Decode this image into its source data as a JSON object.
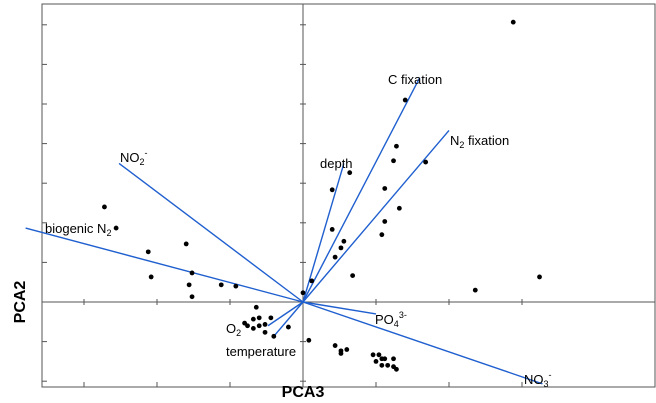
{
  "chart_data": {
    "type": "scatter",
    "subtype": "pca-biplot",
    "xlabel": "PCA3",
    "ylabel": "PCA2",
    "xlim": [
      -1.0,
      1.0
    ],
    "ylim": [
      -0.8,
      2.3
    ],
    "grid": false,
    "colors": {
      "points": "#000000",
      "vectors": "#1f5fcf",
      "frame": "#555555"
    },
    "vectors": [
      {
        "id": "c-fixation",
        "end": [
          0.4,
          1.7
        ],
        "label": "C fixation",
        "label_sub": ""
      },
      {
        "id": "n2-fixation",
        "end": [
          0.5,
          1.3
        ],
        "label": "N",
        "label_sub": "2",
        "label_after": " fixation"
      },
      {
        "id": "depth",
        "end": [
          0.14,
          1.05
        ],
        "label": "depth",
        "label_sub": ""
      },
      {
        "id": "no2",
        "end": [
          -0.63,
          1.05
        ],
        "label": "NO",
        "label_sub": "2",
        "label_sup": "-"
      },
      {
        "id": "biogenic-n2",
        "end": [
          -0.95,
          0.56
        ],
        "label": "biogenic N",
        "label_sub": "2"
      },
      {
        "id": "po4",
        "end": [
          0.25,
          -0.09
        ],
        "label": "PO",
        "label_sub": "4",
        "label_sup": "3-"
      },
      {
        "id": "no3",
        "end": [
          0.82,
          -0.62
        ],
        "label": "NO",
        "label_sub": "3",
        "label_sup": "-"
      },
      {
        "id": "o2",
        "end": [
          -0.12,
          -0.18
        ],
        "label": "O",
        "label_sub": "2"
      },
      {
        "id": "temperature",
        "end": [
          -0.1,
          -0.26
        ],
        "label": "temperature",
        "label_sub": ""
      }
    ],
    "points": [
      [
        0.72,
        2.12
      ],
      [
        0.35,
        1.53
      ],
      [
        0.32,
        1.18
      ],
      [
        0.31,
        1.07
      ],
      [
        0.42,
        1.06
      ],
      [
        0.16,
        0.98
      ],
      [
        0.1,
        0.85
      ],
      [
        0.28,
        0.86
      ],
      [
        0.33,
        0.71
      ],
      [
        0.28,
        0.61
      ],
      [
        0.27,
        0.51
      ],
      [
        0.1,
        0.55
      ],
      [
        0.14,
        0.46
      ],
      [
        0.13,
        0.41
      ],
      [
        0.11,
        0.34
      ],
      [
        0.17,
        0.2
      ],
      [
        0.03,
        0.16
      ],
      [
        0.59,
        0.09
      ],
      [
        0.81,
        0.19
      ],
      [
        -0.68,
        0.72
      ],
      [
        -0.64,
        0.56
      ],
      [
        -0.53,
        0.38
      ],
      [
        -0.4,
        0.44
      ],
      [
        -0.52,
        0.19
      ],
      [
        -0.38,
        0.22
      ],
      [
        -0.39,
        0.13
      ],
      [
        -0.38,
        0.04
      ],
      [
        -0.28,
        0.13
      ],
      [
        -0.23,
        0.12
      ],
      [
        0.0,
        0.07
      ],
      [
        -0.16,
        -0.04
      ],
      [
        -0.17,
        -0.13
      ],
      [
        -0.15,
        -0.12
      ],
      [
        -0.11,
        -0.12
      ],
      [
        -0.2,
        -0.16
      ],
      [
        -0.19,
        -0.18
      ],
      [
        -0.17,
        -0.2
      ],
      [
        -0.15,
        -0.18
      ],
      [
        -0.13,
        -0.17
      ],
      [
        -0.05,
        -0.19
      ],
      [
        -0.1,
        -0.26
      ],
      [
        -0.13,
        -0.23
      ],
      [
        0.02,
        -0.29
      ],
      [
        0.11,
        -0.33
      ],
      [
        0.13,
        -0.37
      ],
      [
        0.15,
        -0.36
      ],
      [
        0.13,
        -0.39
      ],
      [
        0.24,
        -0.4
      ],
      [
        0.25,
        -0.45
      ],
      [
        0.26,
        -0.4
      ],
      [
        0.27,
        -0.43
      ],
      [
        0.28,
        -0.43
      ],
      [
        0.27,
        -0.48
      ],
      [
        0.29,
        -0.48
      ],
      [
        0.31,
        -0.43
      ],
      [
        0.31,
        -0.49
      ],
      [
        0.32,
        -0.51
      ]
    ]
  }
}
